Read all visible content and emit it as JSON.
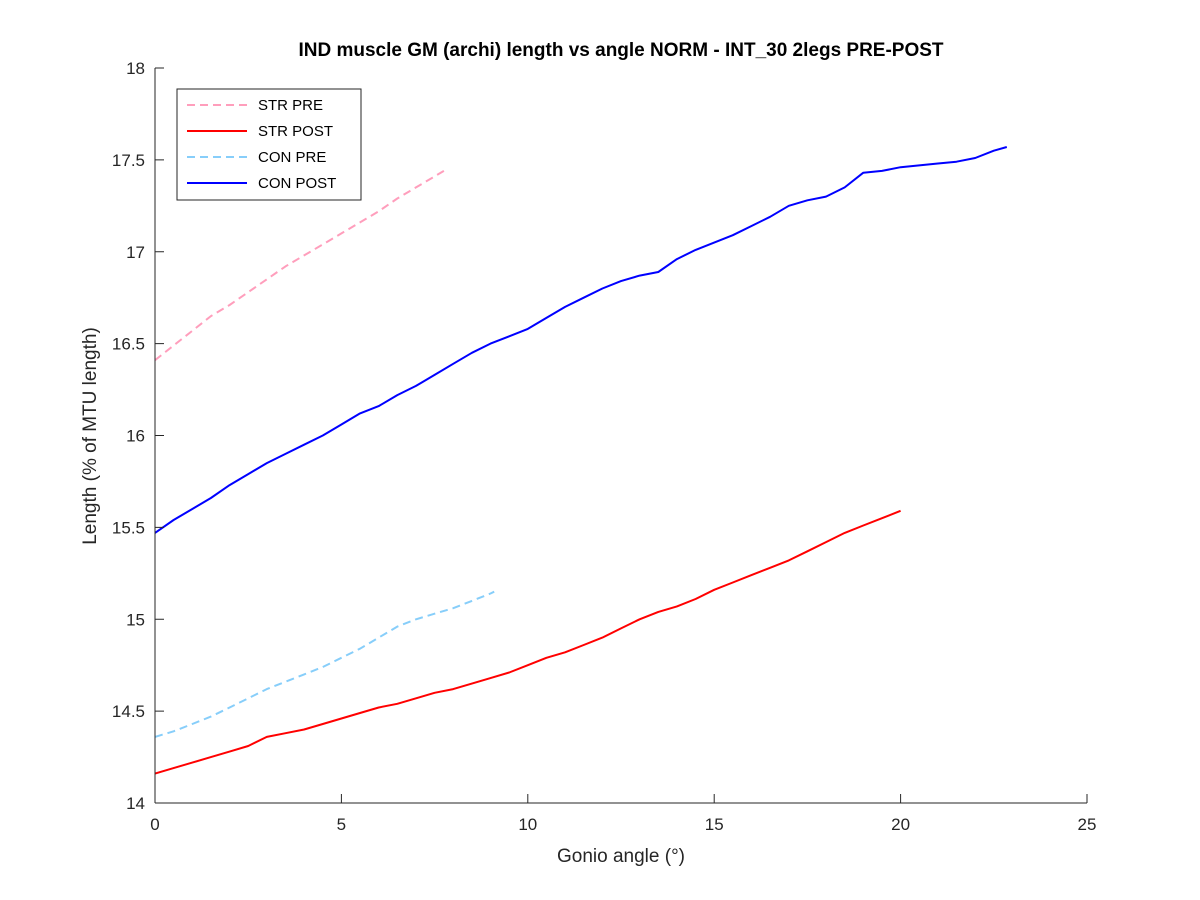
{
  "chart_data": {
    "type": "line",
    "title": "IND muscle GM (archi) length vs angle NORM - INT_30 2legs PRE-POST",
    "xlabel": "Gonio angle (°)",
    "ylabel": "Length (% of MTU length)",
    "xlim": [
      0,
      25
    ],
    "ylim": [
      14,
      18
    ],
    "xticks": [
      "0",
      "5",
      "10",
      "15",
      "20",
      "25"
    ],
    "yticks": [
      "14",
      "14.5",
      "15",
      "15.5",
      "16",
      "16.5",
      "17",
      "17.5",
      "18"
    ],
    "grid": false,
    "legend_position": "top-left",
    "series": [
      {
        "name": "STR PRE",
        "color": "#ff9ebc",
        "style": "dashed",
        "x": [
          0,
          0.5,
          1.0,
          1.5,
          2.0,
          2.5,
          3.0,
          3.5,
          4.0,
          4.5,
          5.0,
          5.5,
          6.0,
          6.5,
          7.0,
          7.5,
          7.75
        ],
        "y": [
          16.41,
          16.49,
          16.57,
          16.65,
          16.71,
          16.78,
          16.85,
          16.92,
          16.98,
          17.04,
          17.1,
          17.16,
          17.22,
          17.29,
          17.35,
          17.41,
          17.44
        ]
      },
      {
        "name": "STR POST",
        "color": "#ff0000",
        "style": "solid",
        "x": [
          0,
          0.5,
          1.0,
          1.5,
          2.0,
          2.5,
          3.0,
          3.5,
          4.0,
          4.5,
          5.0,
          5.5,
          6.0,
          6.5,
          7.0,
          7.5,
          8.0,
          8.5,
          9.0,
          9.5,
          10.0,
          10.5,
          11.0,
          11.5,
          12.0,
          12.5,
          13.0,
          13.5,
          14.0,
          14.5,
          15.0,
          15.5,
          16.0,
          16.5,
          17.0,
          17.5,
          18.0,
          18.5,
          19.0,
          19.5,
          20.0
        ],
        "y": [
          14.16,
          14.19,
          14.22,
          14.25,
          14.28,
          14.31,
          14.36,
          14.38,
          14.4,
          14.43,
          14.46,
          14.49,
          14.52,
          14.54,
          14.57,
          14.6,
          14.62,
          14.65,
          14.68,
          14.71,
          14.75,
          14.79,
          14.82,
          14.86,
          14.9,
          14.95,
          15.0,
          15.04,
          15.07,
          15.11,
          15.16,
          15.2,
          15.24,
          15.28,
          15.32,
          15.37,
          15.42,
          15.47,
          15.51,
          15.55,
          15.59
        ]
      },
      {
        "name": "CON PRE",
        "color": "#87cefa",
        "style": "dashed",
        "x": [
          0,
          0.5,
          1.0,
          1.5,
          2.0,
          2.5,
          3.0,
          3.5,
          4.0,
          4.5,
          5.0,
          5.5,
          6.0,
          6.5,
          7.0,
          7.5,
          8.0,
          8.5,
          9.0,
          9.1
        ],
        "y": [
          14.36,
          14.39,
          14.43,
          14.47,
          14.52,
          14.57,
          14.62,
          14.66,
          14.7,
          14.74,
          14.79,
          14.84,
          14.9,
          14.96,
          15.0,
          15.03,
          15.06,
          15.1,
          15.14,
          15.15
        ]
      },
      {
        "name": "CON POST",
        "color": "#0000ff",
        "style": "solid",
        "x": [
          0,
          0.5,
          1.0,
          1.5,
          2.0,
          2.5,
          3.0,
          3.5,
          4.0,
          4.5,
          5.0,
          5.5,
          6.0,
          6.5,
          7.0,
          7.5,
          8.0,
          8.5,
          9.0,
          9.5,
          10.0,
          10.5,
          11.0,
          11.5,
          12.0,
          12.5,
          13.0,
          13.5,
          14.0,
          14.5,
          15.0,
          15.5,
          16.0,
          16.5,
          17.0,
          17.5,
          18.0,
          18.5,
          19.0,
          19.5,
          20.0,
          20.5,
          21.0,
          21.5,
          22.0,
          22.5,
          22.85
        ],
        "y": [
          15.47,
          15.54,
          15.6,
          15.66,
          15.73,
          15.79,
          15.85,
          15.9,
          15.95,
          16.0,
          16.06,
          16.12,
          16.16,
          16.22,
          16.27,
          16.33,
          16.39,
          16.45,
          16.5,
          16.54,
          16.58,
          16.64,
          16.7,
          16.75,
          16.8,
          16.84,
          16.87,
          16.89,
          16.96,
          17.01,
          17.05,
          17.09,
          17.14,
          17.19,
          17.25,
          17.28,
          17.3,
          17.35,
          17.43,
          17.44,
          17.46,
          17.47,
          17.48,
          17.49,
          17.51,
          17.55,
          17.57
        ]
      }
    ]
  }
}
